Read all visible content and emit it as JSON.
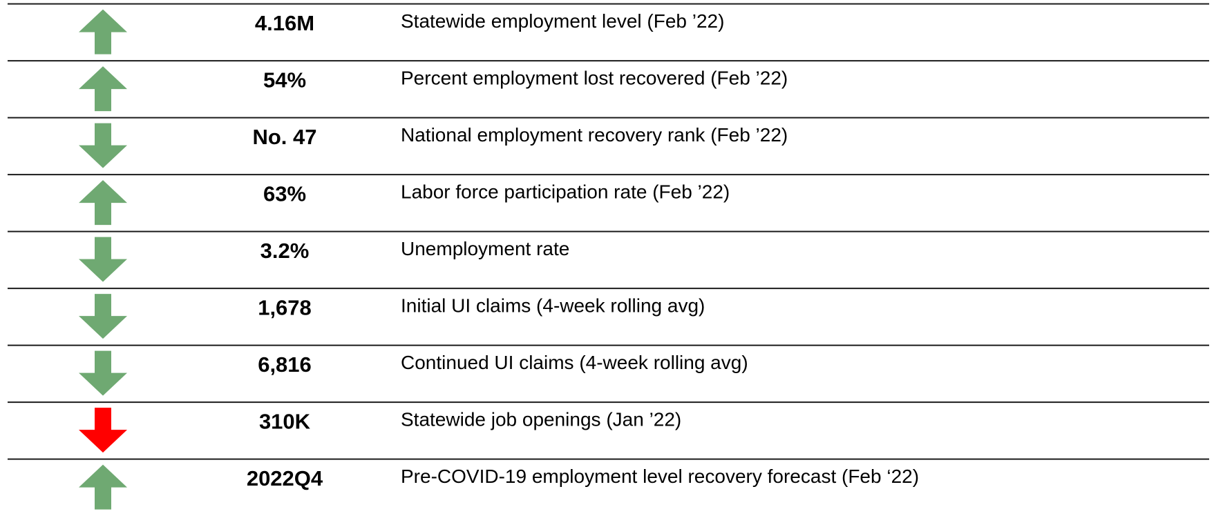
{
  "table": {
    "rows": [
      {
        "value": "4.16M",
        "label": "Statewide employment level (Feb ’22)",
        "direction": "up",
        "color": "#6fa972"
      },
      {
        "value": "54%",
        "label": "Percent employment lost recovered (Feb ’22)",
        "direction": "up",
        "color": "#6fa972"
      },
      {
        "value": "No. 47",
        "label": "National employment recovery rank (Feb ’22)",
        "direction": "down",
        "color": "#6fa972"
      },
      {
        "value": "63%",
        "label": "Labor force participation rate (Feb ’22)",
        "direction": "up",
        "color": "#6fa972"
      },
      {
        "value": "3.2%",
        "label": "Unemployment rate",
        "direction": "down",
        "color": "#6fa972"
      },
      {
        "value": "1,678",
        "label": "Initial UI claims (4-week rolling avg)",
        "direction": "down",
        "color": "#6fa972"
      },
      {
        "value": "6,816",
        "label": "Continued UI claims (4-week rolling avg)",
        "direction": "down",
        "color": "#6fa972"
      },
      {
        "value": "310K",
        "label": "Statewide job openings (Jan ’22)",
        "direction": "down",
        "color": "#ff0000"
      },
      {
        "value": "2022Q4",
        "label": "Pre-COVID-19 employment level recovery forecast (Feb ‘22)",
        "direction": "up",
        "color": "#6fa972"
      }
    ]
  }
}
